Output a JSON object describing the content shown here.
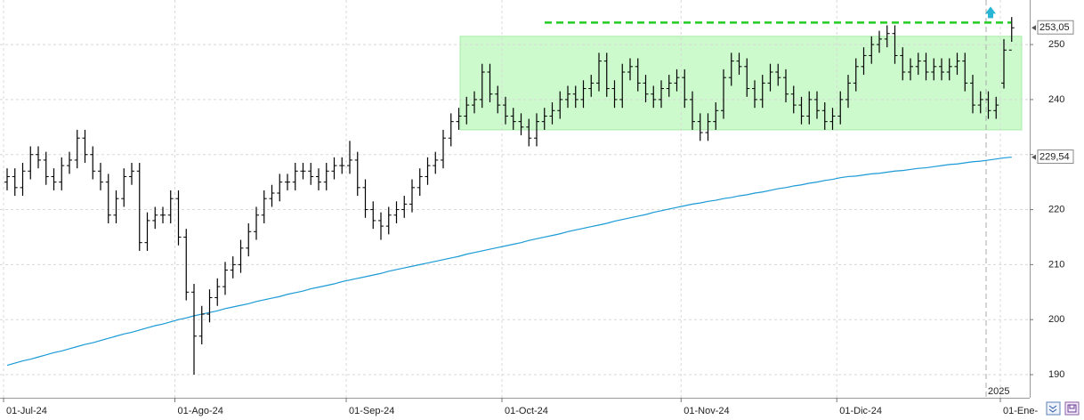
{
  "chart_data": {
    "type": "ohlc",
    "categories": [
      "01-Jul-24",
      null,
      null,
      null,
      null,
      null,
      null,
      null,
      null,
      null,
      null,
      null,
      null,
      null,
      null,
      null,
      null,
      null,
      null,
      null,
      null,
      null,
      "01-Ago-24",
      null,
      null,
      null,
      null,
      null,
      null,
      null,
      null,
      null,
      null,
      null,
      null,
      null,
      null,
      null,
      null,
      null,
      null,
      null,
      null,
      null,
      "01-Sep-24",
      null,
      null,
      null,
      null,
      null,
      null,
      null,
      null,
      null,
      null,
      null,
      null,
      null,
      null,
      null,
      null,
      null,
      null,
      null,
      "01-Oct-24",
      null,
      null,
      null,
      null,
      null,
      null,
      null,
      null,
      null,
      null,
      null,
      null,
      null,
      null,
      null,
      null,
      null,
      null,
      null,
      null,
      null,
      null,
      "01-Nov-24",
      null,
      null,
      null,
      null,
      null,
      null,
      null,
      null,
      null,
      null,
      null,
      null,
      null,
      null,
      null,
      null,
      null,
      null,
      null,
      "01-Dic-24",
      null,
      null,
      null,
      null,
      null,
      null,
      null,
      null,
      null,
      null,
      null,
      null,
      null,
      null,
      null,
      null,
      null,
      null,
      null,
      null,
      "01-Ene-",
      null
    ],
    "year_marker": {
      "index": 128,
      "label": "2025"
    },
    "ohlc": {
      "color": "#000000",
      "open": [
        225,
        226,
        224,
        227,
        230,
        229,
        226,
        225,
        228,
        229,
        233,
        230,
        227,
        225,
        219,
        222,
        226,
        227,
        214,
        218,
        219,
        219,
        222,
        215,
        205,
        197,
        201,
        204,
        206,
        209,
        210,
        213,
        216,
        219,
        222,
        223,
        225,
        225,
        227,
        227,
        226,
        225,
        227,
        228,
        228,
        229,
        224,
        220,
        218,
        217,
        219,
        220,
        221,
        224,
        226,
        228,
        229,
        233,
        236,
        237,
        239,
        240,
        245,
        241,
        239,
        237,
        236,
        235,
        233,
        236,
        237,
        238,
        240,
        241,
        240,
        242,
        243,
        247,
        242,
        240,
        245,
        246,
        243,
        241,
        240,
        242,
        243,
        244,
        240,
        236,
        234,
        236,
        238,
        244,
        247,
        246,
        242,
        240,
        243,
        245,
        244,
        241,
        239,
        237,
        240,
        238,
        236,
        237,
        240,
        243,
        246,
        248,
        250,
        251,
        252,
        248,
        245,
        246,
        247,
        245,
        246,
        245,
        246,
        247,
        243,
        239,
        240,
        238,
        243,
        249
      ],
      "high": [
        227.5,
        227.5,
        228.5,
        231.5,
        231.5,
        230.5,
        227.5,
        229.5,
        230.5,
        234.5,
        234.5,
        231.5,
        228.5,
        226.5,
        223.5,
        227.5,
        228.5,
        228.5,
        219.5,
        220.5,
        220.5,
        223.5,
        223.5,
        216.5,
        206.5,
        202.5,
        205.5,
        207.5,
        210.5,
        211.5,
        214.5,
        217.5,
        220.5,
        223.5,
        224.5,
        226.5,
        226.5,
        228.5,
        228.5,
        228.5,
        227.5,
        228.5,
        229.5,
        229.5,
        232.5,
        230.5,
        225.5,
        221.5,
        219.5,
        220.5,
        221.5,
        222.5,
        225.5,
        227.5,
        229.5,
        230.5,
        234.5,
        237.5,
        238.5,
        240.5,
        241.5,
        246.5,
        246.5,
        242.5,
        240.5,
        238.5,
        237.5,
        236.5,
        237.5,
        238.5,
        239.5,
        241.5,
        242.5,
        242.5,
        243.5,
        244.5,
        248.5,
        248.5,
        243.5,
        246.5,
        247.5,
        247.5,
        244.5,
        242.5,
        243.5,
        244.5,
        245.5,
        245.5,
        241.5,
        237.5,
        237.5,
        239.5,
        245.5,
        248.5,
        248.5,
        247.5,
        243.5,
        244.5,
        246.5,
        246.5,
        245.5,
        242.5,
        240.5,
        241.5,
        241.5,
        239.5,
        238.5,
        241.5,
        244.5,
        247.5,
        249.5,
        251.5,
        252.5,
        253.5,
        253.5,
        249.5,
        247.5,
        248.5,
        248.5,
        247.5,
        247.5,
        247.5,
        248.5,
        248.5,
        244.5,
        241.5,
        241.5,
        240.5,
        251,
        255
      ],
      "low": [
        223.5,
        222.5,
        222.5,
        225.5,
        227.5,
        224.5,
        223.5,
        223.5,
        226.5,
        227.5,
        228.5,
        225.5,
        223.5,
        217.5,
        217.5,
        220.5,
        224.5,
        212.5,
        212.5,
        216.5,
        217.5,
        217.5,
        213.5,
        203.5,
        190,
        195.5,
        199.5,
        202.5,
        204.5,
        207.5,
        208.5,
        211.5,
        214.5,
        217.5,
        220.5,
        221.5,
        223.5,
        223.5,
        225.5,
        224.5,
        223.5,
        223.5,
        225.5,
        226.5,
        226.5,
        222.5,
        218.5,
        216.5,
        214.5,
        215.5,
        217.5,
        218.5,
        219.5,
        222.5,
        224.5,
        226.5,
        227.5,
        231.5,
        234.5,
        235.5,
        237.5,
        238.5,
        239.5,
        237.5,
        235.5,
        234.5,
        233.5,
        231.5,
        231.5,
        234.5,
        235.5,
        236.5,
        238.5,
        238.5,
        238.5,
        240.5,
        241.5,
        240.5,
        238.5,
        238.5,
        243.5,
        241.5,
        239.5,
        238.5,
        238.5,
        240.5,
        241.5,
        238.5,
        234.5,
        232.5,
        232.5,
        234.5,
        236.5,
        242.5,
        244.5,
        240.5,
        238.5,
        238.5,
        241.5,
        242.5,
        239.5,
        237.5,
        235.5,
        235.5,
        236.5,
        234.5,
        234.5,
        235.5,
        238.5,
        241.5,
        244.5,
        246.5,
        248.5,
        249.5,
        246.5,
        243.5,
        243.5,
        244.5,
        243.5,
        243.5,
        243.5,
        243.5,
        244.5,
        241.5,
        237.5,
        237.5,
        236.5,
        236.5,
        242,
        250.5
      ],
      "close": [
        226,
        224,
        227,
        230,
        229,
        226,
        225,
        228,
        229,
        233,
        230,
        227,
        225,
        219,
        222,
        226,
        227,
        214,
        218,
        219,
        219,
        222,
        215,
        205,
        197,
        201,
        204,
        206,
        209,
        210,
        213,
        216,
        219,
        222,
        223,
        225,
        225,
        227,
        227,
        226,
        225,
        227,
        228,
        228,
        229,
        224,
        220,
        218,
        217,
        219,
        220,
        221,
        224,
        226,
        228,
        229,
        233,
        236,
        237,
        239,
        240,
        245,
        241,
        239,
        237,
        236,
        235,
        233,
        236,
        237,
        238,
        240,
        241,
        240,
        242,
        243,
        247,
        242,
        240,
        245,
        246,
        243,
        241,
        240,
        242,
        243,
        244,
        240,
        236,
        234,
        236,
        238,
        244,
        247,
        246,
        242,
        240,
        243,
        245,
        244,
        241,
        239,
        237,
        240,
        238,
        236,
        237,
        240,
        243,
        246,
        248,
        250,
        251,
        252,
        248,
        245,
        246,
        247,
        245,
        246,
        245,
        246,
        247,
        243,
        239,
        240,
        238,
        239,
        249,
        253.05
      ]
    },
    "ma": {
      "color": "#1a9ad6",
      "values": [
        191.7,
        192.1,
        192.5,
        192.8,
        193.2,
        193.6,
        194.0,
        194.3,
        194.7,
        195.1,
        195.5,
        195.8,
        196.2,
        196.6,
        197.0,
        197.4,
        197.7,
        198.1,
        198.5,
        198.9,
        199.2,
        199.6,
        200.0,
        200.3,
        200.7,
        201.0,
        201.3,
        201.6,
        202.0,
        202.3,
        202.6,
        202.9,
        203.3,
        203.6,
        203.9,
        204.2,
        204.6,
        204.9,
        205.2,
        205.6,
        205.9,
        206.2,
        206.5,
        206.9,
        207.2,
        207.5,
        207.8,
        208.1,
        208.4,
        208.8,
        209.1,
        209.4,
        209.7,
        210.0,
        210.3,
        210.6,
        210.9,
        211.2,
        211.5,
        211.9,
        212.2,
        212.5,
        212.8,
        213.1,
        213.4,
        213.7,
        214.0,
        214.4,
        214.7,
        215.0,
        215.3,
        215.6,
        216.0,
        216.3,
        216.6,
        216.9,
        217.2,
        217.5,
        217.9,
        218.2,
        218.5,
        218.8,
        219.1,
        219.5,
        219.8,
        220.1,
        220.4,
        220.7,
        221.0,
        221.2,
        221.5,
        221.7,
        222.0,
        222.2,
        222.5,
        222.7,
        223.0,
        223.2,
        223.5,
        223.8,
        224.0,
        224.3,
        224.5,
        224.8,
        225.0,
        225.3,
        225.5,
        225.8,
        226.0,
        226.1,
        226.3,
        226.5,
        226.6,
        226.8,
        227.0,
        227.1,
        227.3,
        227.5,
        227.6,
        227.8,
        228.0,
        228.2,
        228.3,
        228.5,
        228.7,
        228.8,
        229.0,
        229.2,
        229.4,
        229.54
      ]
    },
    "range_box": {
      "ylim": [
        234.5,
        251.5
      ],
      "fill": "#ccfacc",
      "color": "#a8eca8"
    },
    "resistance": {
      "value": 254,
      "color": "#22cc22"
    },
    "price_tags": [
      {
        "value": 253.05,
        "label": "253,05"
      },
      {
        "value": 229.54,
        "label": "229,54"
      }
    ],
    "ylim": [
      185.8,
      258.1
    ],
    "yticks": [
      190,
      200,
      210,
      220,
      230,
      240,
      250
    ],
    "grid": true
  }
}
